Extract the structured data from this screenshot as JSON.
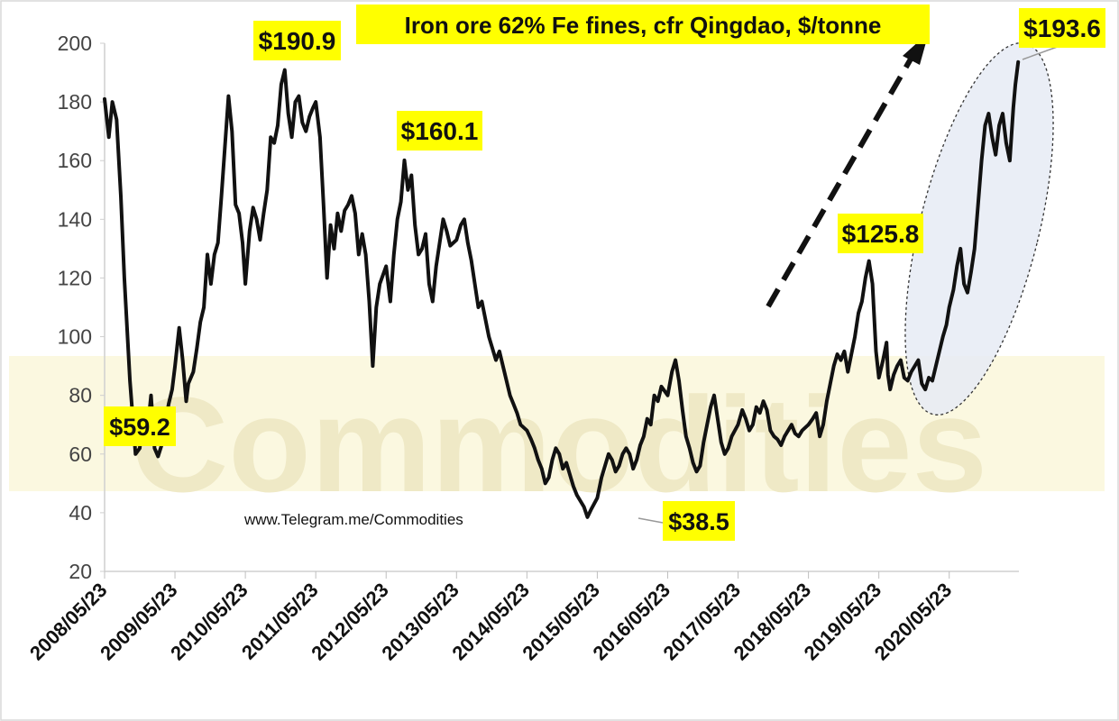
{
  "chart_data": {
    "type": "line",
    "title": "Iron ore 62% Fe fines, cfr Qingdao, $/tonne",
    "xlabel": "",
    "ylabel": "",
    "ylim": [
      20,
      200
    ],
    "yticks": [
      20,
      40,
      60,
      80,
      100,
      120,
      140,
      160,
      180,
      200
    ],
    "xticks": [
      "2008/05/23",
      "2009/05/23",
      "2010/05/23",
      "2011/05/23",
      "2012/05/23",
      "2013/05/23",
      "2014/05/23",
      "2015/05/23",
      "2016/05/23",
      "2017/05/23",
      "2018/05/23",
      "2019/05/23",
      "2020/05/23"
    ],
    "grid": false,
    "watermark_url": "www.Telegram.me/Commodities",
    "watermark_logo": "Commodities",
    "series": [
      {
        "x": [
          2008.39,
          2008.45,
          2008.5,
          2008.56,
          2008.62,
          2008.67,
          2008.75,
          2008.83,
          2008.89,
          2008.92,
          2008.95,
          2009.0,
          2009.05,
          2009.1,
          2009.15,
          2009.2,
          2009.25,
          2009.3,
          2009.35,
          2009.39,
          2009.45,
          2009.5,
          2009.55,
          2009.58,
          2009.65,
          2009.7,
          2009.75,
          2009.8,
          2009.85,
          2009.9,
          2009.95,
          2010.0,
          2010.05,
          2010.1,
          2010.15,
          2010.2,
          2010.25,
          2010.3,
          2010.35,
          2010.39,
          2010.45,
          2010.5,
          2010.55,
          2010.6,
          2010.65,
          2010.7,
          2010.75,
          2010.8,
          2010.85,
          2010.9,
          2010.95,
          2011.0,
          2011.05,
          2011.1,
          2011.15,
          2011.2,
          2011.25,
          2011.3,
          2011.35,
          2011.39,
          2011.45,
          2011.5,
          2011.55,
          2011.6,
          2011.65,
          2011.7,
          2011.75,
          2011.8,
          2011.85,
          2011.9,
          2011.95,
          2012.0,
          2012.05,
          2012.1,
          2012.15,
          2012.2,
          2012.25,
          2012.3,
          2012.39,
          2012.45,
          2012.5,
          2012.55,
          2012.6,
          2012.65,
          2012.7,
          2012.75,
          2012.8,
          2012.85,
          2012.9,
          2012.95,
          2013.0,
          2013.05,
          2013.1,
          2013.15,
          2013.2,
          2013.25,
          2013.3,
          2013.39,
          2013.45,
          2013.5,
          2013.55,
          2013.6,
          2013.65,
          2013.7,
          2013.75,
          2013.8,
          2013.85,
          2013.9,
          2013.95,
          2014.0,
          2014.05,
          2014.1,
          2014.15,
          2014.2,
          2014.25,
          2014.3,
          2014.39,
          2014.45,
          2014.5,
          2014.55,
          2014.6,
          2014.65,
          2014.7,
          2014.75,
          2014.8,
          2014.85,
          2014.9,
          2014.95,
          2015.0,
          2015.05,
          2015.1,
          2015.15,
          2015.2,
          2015.25,
          2015.3,
          2015.39,
          2015.45,
          2015.5,
          2015.55,
          2015.6,
          2015.65,
          2015.7,
          2015.75,
          2015.8,
          2015.85,
          2015.9,
          2015.95,
          2016.0,
          2016.05,
          2016.1,
          2016.15,
          2016.2,
          2016.25,
          2016.3,
          2016.39,
          2016.45,
          2016.5,
          2016.55,
          2016.6,
          2016.65,
          2016.7,
          2016.75,
          2016.8,
          2016.85,
          2016.9,
          2016.95,
          2017.0,
          2017.05,
          2017.1,
          2017.15,
          2017.2,
          2017.25,
          2017.3,
          2017.39,
          2017.45,
          2017.5,
          2017.55,
          2017.6,
          2017.65,
          2017.7,
          2017.75,
          2017.8,
          2017.85,
          2017.9,
          2017.95,
          2018.0,
          2018.05,
          2018.1,
          2018.15,
          2018.2,
          2018.25,
          2018.3,
          2018.39,
          2018.45,
          2018.5,
          2018.55,
          2018.6,
          2018.65,
          2018.7,
          2018.75,
          2018.8,
          2018.85,
          2018.9,
          2018.95,
          2019.0,
          2019.05,
          2019.1,
          2019.15,
          2019.2,
          2019.25,
          2019.3,
          2019.35,
          2019.39,
          2019.45,
          2019.5,
          2019.52,
          2019.55,
          2019.6,
          2019.65,
          2019.7,
          2019.75,
          2019.8,
          2019.85,
          2019.9,
          2019.95,
          2020.0,
          2020.05,
          2020.1,
          2020.15,
          2020.2,
          2020.25,
          2020.3,
          2020.35,
          2020.39,
          2020.45,
          2020.5,
          2020.55,
          2020.6,
          2020.65,
          2020.7,
          2020.75,
          2020.8,
          2020.85,
          2020.9,
          2020.95,
          2021.0,
          2021.05,
          2021.1,
          2021.15,
          2021.2,
          2021.25,
          2021.3,
          2021.33,
          2021.37
        ],
        "y": [
          181,
          168,
          180,
          174,
          148,
          120,
          85,
          60,
          62,
          70,
          73,
          68,
          80,
          62,
          59.2,
          63,
          70,
          77,
          82,
          90,
          103,
          92,
          78,
          84,
          88,
          96,
          105,
          110,
          128,
          118,
          128,
          132,
          148,
          165,
          182,
          170,
          145,
          142,
          132,
          118,
          136,
          144,
          140,
          133,
          142,
          150,
          168,
          166,
          172,
          186,
          190.9,
          176,
          168,
          180,
          182,
          173,
          170,
          175,
          178,
          180,
          168,
          145,
          120,
          138,
          130,
          142,
          136,
          143,
          145,
          148,
          142,
          128,
          135,
          128,
          112,
          90,
          110,
          118,
          124,
          112,
          128,
          140,
          146,
          160.1,
          150,
          155,
          138,
          128,
          130,
          135,
          118,
          112,
          124,
          132,
          140,
          136,
          131,
          133,
          138,
          140,
          132,
          126,
          118,
          110,
          112,
          106,
          100,
          96,
          92,
          95,
          90,
          85,
          80,
          77,
          74,
          70,
          68,
          65,
          62,
          58,
          55,
          50,
          52,
          58,
          62,
          60,
          55,
          57,
          53,
          49,
          46,
          44,
          42,
          38.5,
          41,
          45,
          52,
          56,
          60,
          58,
          54,
          56,
          60,
          62,
          60,
          55,
          58,
          63,
          66,
          72,
          70,
          80,
          78,
          83,
          80,
          88,
          92,
          85,
          75,
          66,
          62,
          57,
          54,
          56,
          64,
          70,
          76,
          80,
          72,
          64,
          60,
          62,
          66,
          70,
          75,
          72,
          68,
          70,
          76,
          74,
          78,
          75,
          68,
          66,
          65,
          63,
          66,
          68,
          70,
          67,
          66,
          68,
          70,
          72,
          74,
          66,
          70,
          78,
          84,
          90,
          94,
          92,
          95,
          88,
          94,
          100,
          108,
          112,
          120,
          125.8,
          118,
          95,
          86,
          92,
          98,
          87,
          82,
          87,
          90,
          92,
          86,
          85,
          88,
          90,
          92,
          84,
          82,
          86,
          85,
          90,
          95,
          100,
          104,
          110,
          116,
          124,
          130,
          118,
          115,
          122,
          130,
          145,
          160,
          172,
          176,
          168,
          162,
          172,
          176,
          166,
          160,
          178,
          186,
          193.6
        ]
      }
    ],
    "annotations": [
      {
        "label": "$190.9",
        "x": 2010.95,
        "y": 190.9
      },
      {
        "label": "$160.1",
        "x": 2012.65,
        "y": 160.1
      },
      {
        "label": "$59.2",
        "x": 2009.15,
        "y": 59.2
      },
      {
        "label": "$38.5",
        "x": 2015.85,
        "y": 38.5
      },
      {
        "label": "$125.8",
        "x": 2019.52,
        "y": 125.8
      },
      {
        "label": "$193.6",
        "x": 2021.37,
        "y": 193.6
      }
    ],
    "colors": {
      "line": "#111111",
      "callout_bg": "#ffff00",
      "axis": "#cfcfcf",
      "tick_label": "#444444",
      "ellipse_fill": "#e6ebf5",
      "watermark": "#f4f2dc"
    }
  }
}
